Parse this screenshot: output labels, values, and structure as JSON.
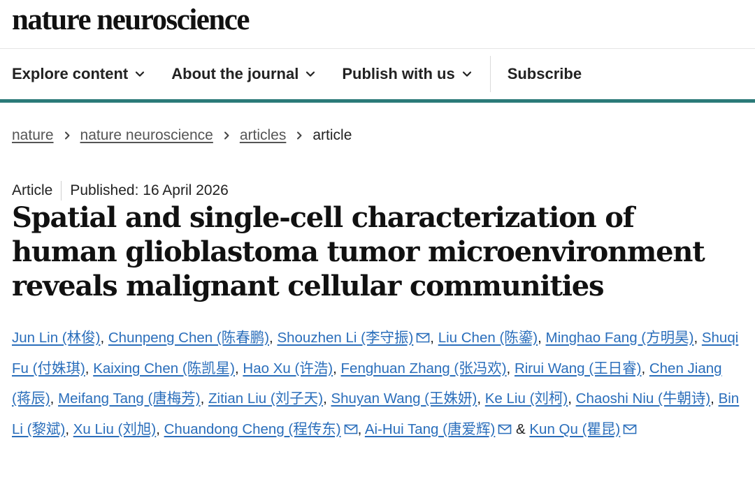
{
  "header": {
    "logo": "nature neuroscience"
  },
  "nav": {
    "items": [
      {
        "label": "Explore content"
      },
      {
        "label": "About the journal"
      },
      {
        "label": "Publish with us"
      }
    ],
    "subscribe": "Subscribe"
  },
  "breadcrumb": {
    "items": [
      "nature",
      "nature neuroscience",
      "articles"
    ],
    "current": "article"
  },
  "article": {
    "type": "Article",
    "published": "Published: 16 April 2026",
    "title": "Spatial and single-cell characterization of human glioblastoma tumor microenvironment reveals malignant cellular communities"
  },
  "authors": [
    {
      "name": "Jun Lin (林俊)",
      "mail": false
    },
    {
      "name": "Chunpeng Chen (陈春鹏)",
      "mail": false
    },
    {
      "name": "Shouzhen Li (李守振)",
      "mail": true
    },
    {
      "name": "Liu Chen (陈鎏)",
      "mail": false
    },
    {
      "name": "Minghao Fang (方明昊)",
      "mail": false
    },
    {
      "name": "Shuqi Fu (付姝琪)",
      "mail": false
    },
    {
      "name": "Kaixing Chen (陈凯星)",
      "mail": false
    },
    {
      "name": "Hao Xu (许浩)",
      "mail": false
    },
    {
      "name": "Fenghuan Zhang (张冯欢)",
      "mail": false
    },
    {
      "name": "Rirui Wang (王日睿)",
      "mail": false
    },
    {
      "name": "Chen Jiang (蒋辰)",
      "mail": false
    },
    {
      "name": "Meifang Tang (唐梅芳)",
      "mail": false
    },
    {
      "name": "Zitian Liu (刘子天)",
      "mail": false
    },
    {
      "name": "Shuyan Wang (王姝妍)",
      "mail": false
    },
    {
      "name": "Ke Liu (刘柯)",
      "mail": false
    },
    {
      "name": "Chaoshi Niu (牛朝诗)",
      "mail": false
    },
    {
      "name": "Bin Li (黎斌)",
      "mail": false
    },
    {
      "name": "Xu Liu (刘旭)",
      "mail": false
    },
    {
      "name": "Chuandong Cheng (程传东)",
      "mail": true
    },
    {
      "name": "Ai-Hui Tang (唐爱辉)",
      "mail": true
    },
    {
      "name": "Kun Qu (瞿昆)",
      "mail": true
    }
  ],
  "authors_separator": ", ",
  "authors_last_separator": " & ",
  "icons": {
    "chevron": "chevron-down-icon",
    "breadcrumb_sep": "chevron-right-icon",
    "mail": "mail-icon"
  },
  "colors": {
    "accent": "#2b7a78",
    "link": "#2a6ebb"
  }
}
